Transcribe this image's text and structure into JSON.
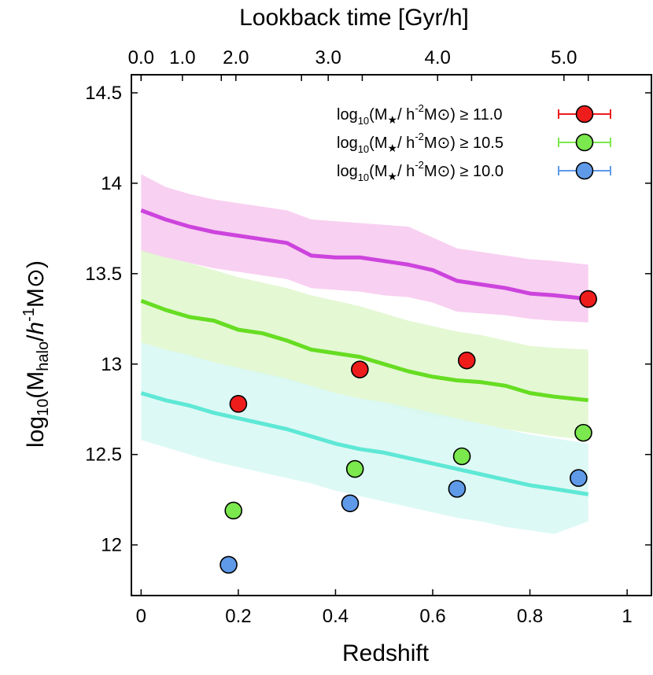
{
  "chart_data": {
    "type": "line",
    "xlabel": "Redshift",
    "ylabel_parts": {
      "prefix": "log",
      "prefix_sub": "10",
      "open": "(M",
      "sub": "halo",
      "slash": "/",
      "h": "h",
      "h_sup": "-1",
      "msun": "M⊙",
      "close": ")"
    },
    "top_axis_label": "Lookback time [Gyr/h]",
    "xlim": [
      -0.02,
      1.05
    ],
    "ylim": [
      11.72,
      14.6
    ],
    "x_ticks": [
      {
        "value": 0,
        "label": "0"
      },
      {
        "value": 0.2,
        "label": "0.2"
      },
      {
        "value": 0.4,
        "label": "0.4"
      },
      {
        "value": 0.6,
        "label": "0.6"
      },
      {
        "value": 0.8,
        "label": "0.8"
      },
      {
        "value": 1,
        "label": "1"
      }
    ],
    "y_ticks": [
      {
        "value": 12,
        "label": "12"
      },
      {
        "value": 12.5,
        "label": "12.5"
      },
      {
        "value": 13,
        "label": "13"
      },
      {
        "value": 13.5,
        "label": "13.5"
      },
      {
        "value": 14,
        "label": "14"
      },
      {
        "value": 14.5,
        "label": "14.5"
      }
    ],
    "top_ticks": [
      {
        "z": 0.0,
        "label": "0.0"
      },
      {
        "z": 0.0,
        "label": ""
      },
      {
        "z": 0.085,
        "label": "1.0"
      },
      {
        "z": 0.165,
        "label": ""
      },
      {
        "z": 0.195,
        "label": "2.0"
      },
      {
        "z": 0.33,
        "label": ""
      },
      {
        "z": 0.385,
        "label": "3.0"
      },
      {
        "z": 0.455,
        "label": ""
      },
      {
        "z": 0.61,
        "label": "4.0"
      },
      {
        "z": 0.68,
        "label": ""
      },
      {
        "z": 0.87,
        "label": "5.0"
      },
      {
        "z": 0.92,
        "label": ""
      }
    ],
    "legend": [
      {
        "label_pre": "log",
        "label_sub": "10",
        "label_mid": "(M",
        "label_star": "★",
        "label_slash": "/ h",
        "label_sup": "-2",
        "label_msun": "M⊙",
        "label_post": ") ≥ 11.0",
        "color": "#ef1c1c"
      },
      {
        "label_pre": "log",
        "label_sub": "10",
        "label_mid": "(M",
        "label_star": "★",
        "label_slash": "/ h",
        "label_sup": "-2",
        "label_msun": "M⊙",
        "label_post": ") ≥ 10.5",
        "color": "#7be84d"
      },
      {
        "label_pre": "log",
        "label_sub": "10",
        "label_mid": "(M",
        "label_star": "★",
        "label_slash": "/ h",
        "label_sup": "-2",
        "label_msun": "M⊙",
        "label_post": ") ≥ 10.0",
        "color": "#5f9ae8"
      }
    ],
    "bands": [
      {
        "color": "#f7c8ef",
        "line_color": "#cc44dd",
        "x": [
          0,
          0.05,
          0.1,
          0.15,
          0.2,
          0.25,
          0.3,
          0.35,
          0.4,
          0.45,
          0.5,
          0.55,
          0.6,
          0.65,
          0.7,
          0.75,
          0.8,
          0.85,
          0.92
        ],
        "center": [
          13.85,
          13.8,
          13.76,
          13.73,
          13.71,
          13.69,
          13.67,
          13.6,
          13.59,
          13.59,
          13.57,
          13.55,
          13.52,
          13.46,
          13.44,
          13.42,
          13.39,
          13.38,
          13.36
        ],
        "upper": [
          14.05,
          13.98,
          13.94,
          13.91,
          13.89,
          13.87,
          13.85,
          13.8,
          13.79,
          13.78,
          13.77,
          13.76,
          13.7,
          13.64,
          13.62,
          13.6,
          13.58,
          13.57,
          13.55
        ],
        "lower": [
          13.62,
          13.59,
          13.56,
          13.53,
          13.51,
          13.49,
          13.47,
          13.42,
          13.41,
          13.4,
          13.38,
          13.37,
          13.34,
          13.29,
          13.28,
          13.27,
          13.25,
          13.24,
          13.23
        ]
      },
      {
        "color": "#dff7cc",
        "line_color": "#66dd22",
        "x": [
          0,
          0.05,
          0.1,
          0.15,
          0.2,
          0.25,
          0.3,
          0.35,
          0.4,
          0.45,
          0.5,
          0.55,
          0.6,
          0.65,
          0.7,
          0.75,
          0.8,
          0.85,
          0.92
        ],
        "center": [
          13.35,
          13.3,
          13.26,
          13.24,
          13.19,
          13.17,
          13.13,
          13.08,
          13.06,
          13.04,
          13.0,
          12.96,
          12.93,
          12.91,
          12.9,
          12.88,
          12.84,
          12.82,
          12.8
        ],
        "upper": [
          13.63,
          13.59,
          13.56,
          13.52,
          13.48,
          13.45,
          13.42,
          13.38,
          13.35,
          13.32,
          13.28,
          13.24,
          13.21,
          13.18,
          13.16,
          13.13,
          13.1,
          13.09,
          13.08
        ],
        "lower": [
          13.12,
          13.08,
          13.04,
          13.01,
          12.97,
          12.94,
          12.91,
          12.87,
          12.84,
          12.81,
          12.78,
          12.74,
          12.71,
          12.69,
          12.67,
          12.64,
          12.62,
          12.6,
          12.58
        ]
      },
      {
        "color": "#d7f8f3",
        "line_color": "#5ee8d5",
        "x": [
          0,
          0.05,
          0.1,
          0.15,
          0.2,
          0.25,
          0.3,
          0.35,
          0.4,
          0.45,
          0.5,
          0.55,
          0.6,
          0.65,
          0.7,
          0.75,
          0.8,
          0.85,
          0.92
        ],
        "center": [
          12.84,
          12.8,
          12.77,
          12.73,
          12.7,
          12.67,
          12.64,
          12.6,
          12.56,
          12.53,
          12.51,
          12.48,
          12.45,
          12.42,
          12.39,
          12.36,
          12.33,
          12.31,
          12.28
        ],
        "upper": [
          13.12,
          13.08,
          13.05,
          13.01,
          12.98,
          12.95,
          12.92,
          12.88,
          12.84,
          12.81,
          12.79,
          12.76,
          12.73,
          12.7,
          12.67,
          12.64,
          12.61,
          12.59,
          12.56
        ],
        "lower": [
          12.58,
          12.54,
          12.5,
          12.46,
          12.43,
          12.4,
          12.37,
          12.34,
          12.3,
          12.27,
          12.24,
          12.21,
          12.18,
          12.15,
          12.13,
          12.1,
          12.08,
          12.06,
          12.13
        ]
      }
    ],
    "series": [
      {
        "name": "log10(M★/ h-2M⊙) ≥ 11.0",
        "color": "#ef1c1c",
        "points": [
          {
            "x": 0.2,
            "y": 12.78,
            "yerr": 0.04
          },
          {
            "x": 0.45,
            "y": 12.97,
            "yerr": 0.02
          },
          {
            "x": 0.67,
            "y": 13.02,
            "yerr": 0.02
          },
          {
            "x": 0.92,
            "y": 13.36,
            "yerr": 0.02
          }
        ]
      },
      {
        "name": "log10(M★/ h-2M⊙) ≥ 10.5",
        "color": "#7be84d",
        "points": [
          {
            "x": 0.19,
            "y": 12.19,
            "yerr": 0.02
          },
          {
            "x": 0.44,
            "y": 12.42,
            "yerr": 0.02
          },
          {
            "x": 0.66,
            "y": 12.49,
            "yerr": 0.02
          },
          {
            "x": 0.91,
            "y": 12.62,
            "yerr": 0.02
          }
        ]
      },
      {
        "name": "log10(M★/ h-2M⊙) ≥ 10.0",
        "color": "#5f9ae8",
        "points": [
          {
            "x": 0.18,
            "y": 11.89,
            "yerr": 0.02
          },
          {
            "x": 0.43,
            "y": 12.23,
            "yerr": 0.02
          },
          {
            "x": 0.65,
            "y": 12.31,
            "yerr": 0.02
          },
          {
            "x": 0.9,
            "y": 12.37,
            "yerr": 0.02
          }
        ]
      }
    ]
  }
}
